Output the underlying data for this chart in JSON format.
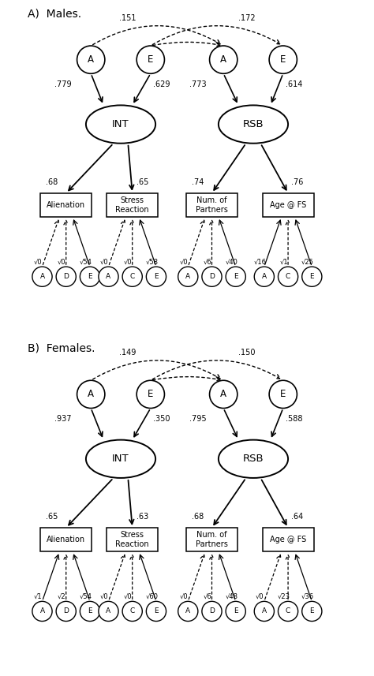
{
  "panel_A": {
    "title": "A)  Males.",
    "corr_label_left": ".151",
    "corr_label_right": ".172",
    "int_A_path": ".779",
    "int_E_path": ".629",
    "rsb_A_path": ".773",
    "rsb_E_path": ".614",
    "int_load1": ".68",
    "int_load2": ".65",
    "rsb_load1": ".74",
    "rsb_load2": ".76",
    "boxes": [
      "Alienation",
      "Stress\nReaction",
      "Num. of\nPartners",
      "Age @ FS"
    ],
    "box1_sqrt": [
      "√0",
      "√0",
      "√54"
    ],
    "box1_letters": [
      "A",
      "D",
      "E"
    ],
    "box1_dotted": [
      true,
      true,
      false
    ],
    "box2_sqrt": [
      "√0",
      "√0",
      "√58"
    ],
    "box2_letters": [
      "A",
      "C",
      "E"
    ],
    "box2_dotted": [
      true,
      true,
      false
    ],
    "box3_sqrt": [
      "√0",
      "√6",
      "√40"
    ],
    "box3_letters": [
      "A",
      "D",
      "E"
    ],
    "box3_dotted": [
      true,
      true,
      false
    ],
    "box4_sqrt": [
      "√16",
      "√1",
      "√25"
    ],
    "box4_letters": [
      "A",
      "C",
      "E"
    ],
    "box4_dotted": [
      false,
      true,
      false
    ]
  },
  "panel_B": {
    "title": "B)  Females.",
    "corr_label_left": ".149",
    "corr_label_right": ".150",
    "int_A_path": ".937",
    "int_E_path": ".350",
    "rsb_A_path": ".795",
    "rsb_E_path": ".588",
    "int_load1": ".65",
    "int_load2": ".63",
    "rsb_load1": ".68",
    "rsb_load2": ".64",
    "boxes": [
      "Alienation",
      "Stress\nReaction",
      "Num. of\nPartners",
      "Age @ FS"
    ],
    "box1_sqrt": [
      "√1",
      "√2",
      "√54"
    ],
    "box1_letters": [
      "A",
      "D",
      "E"
    ],
    "box1_dotted": [
      false,
      true,
      false
    ],
    "box2_sqrt": [
      "√0",
      "√0",
      "√60"
    ],
    "box2_letters": [
      "A",
      "C",
      "E"
    ],
    "box2_dotted": [
      true,
      true,
      false
    ],
    "box3_sqrt": [
      "√0",
      "√6",
      "√48"
    ],
    "box3_letters": [
      "A",
      "D",
      "E"
    ],
    "box3_dotted": [
      true,
      true,
      false
    ],
    "box4_sqrt": [
      "√0",
      "√23",
      "√36"
    ],
    "box4_letters": [
      "A",
      "C",
      "E"
    ],
    "box4_dotted": [
      true,
      true,
      false
    ]
  },
  "bg_color": "#ffffff",
  "text_color": "#000000",
  "line_color": "#000000"
}
